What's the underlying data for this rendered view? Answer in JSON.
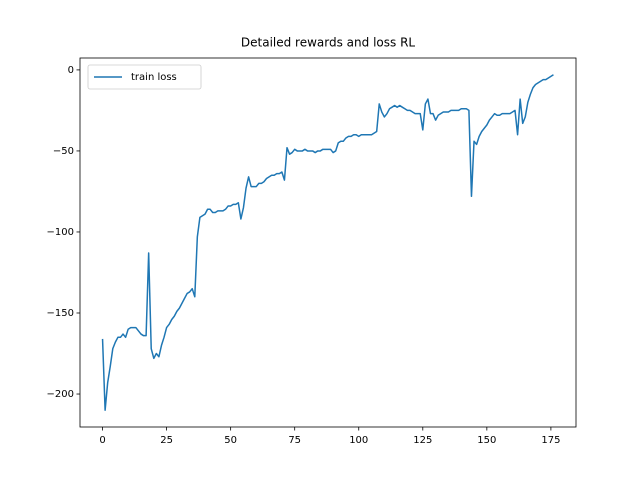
{
  "chart_data": {
    "type": "line",
    "title": "Detailed rewards and loss RL",
    "x": [
      0,
      1,
      2,
      3,
      4,
      5,
      6,
      7,
      8,
      9,
      10,
      11,
      12,
      13,
      14,
      15,
      16,
      17,
      18,
      19,
      20,
      21,
      22,
      23,
      24,
      25,
      26,
      27,
      28,
      29,
      30,
      31,
      32,
      33,
      34,
      35,
      36,
      37,
      38,
      39,
      40,
      41,
      42,
      43,
      44,
      45,
      46,
      47,
      48,
      49,
      50,
      51,
      52,
      53,
      54,
      55,
      56,
      57,
      58,
      59,
      60,
      61,
      62,
      63,
      64,
      65,
      66,
      67,
      68,
      69,
      70,
      71,
      72,
      73,
      74,
      75,
      76,
      77,
      78,
      79,
      80,
      81,
      82,
      83,
      84,
      85,
      86,
      87,
      88,
      89,
      90,
      91,
      92,
      93,
      94,
      95,
      96,
      97,
      98,
      99,
      100,
      101,
      102,
      103,
      104,
      105,
      106,
      107,
      108,
      109,
      110,
      111,
      112,
      113,
      114,
      115,
      116,
      117,
      118,
      119,
      120,
      121,
      122,
      123,
      124,
      125,
      126,
      127,
      128,
      129,
      130,
      131,
      132,
      133,
      134,
      135,
      136,
      137,
      138,
      139,
      140,
      141,
      142,
      143,
      144,
      145,
      146,
      147,
      148,
      149,
      150,
      151,
      152,
      153,
      154,
      155,
      156,
      157,
      158,
      159,
      160,
      161,
      162,
      163,
      164,
      165,
      166,
      167,
      168,
      169,
      170,
      171,
      172,
      173,
      174,
      175,
      176
    ],
    "series": [
      {
        "name": "train loss",
        "color": "#1f77b4",
        "values": [
          -166,
          -210,
          -193,
          -183,
          -172,
          -168,
          -165,
          -165,
          -163,
          -165,
          -160,
          -159,
          -159,
          -159,
          -161,
          -163,
          -164,
          -164,
          -113,
          -172,
          -178,
          -175,
          -177,
          -170,
          -165,
          -159,
          -157,
          -154,
          -152,
          -149,
          -147,
          -144,
          -141,
          -138,
          -137,
          -135,
          -140,
          -103,
          -91,
          -90,
          -89,
          -86,
          -86,
          -88,
          -88,
          -87,
          -87,
          -87,
          -86,
          -84,
          -84,
          -83,
          -83,
          -82,
          -92,
          -85,
          -73,
          -66,
          -72,
          -72,
          -72,
          -70,
          -70,
          -69,
          -67,
          -66,
          -65,
          -65,
          -64,
          -64,
          -63,
          -68,
          -48,
          -52,
          -51,
          -49,
          -50,
          -50,
          -50,
          -49,
          -50,
          -50,
          -50,
          -51,
          -50,
          -50,
          -49,
          -49,
          -49,
          -49,
          -51,
          -50,
          -45,
          -44,
          -44,
          -42,
          -41,
          -41,
          -40,
          -40,
          -41,
          -40,
          -40,
          -40,
          -40,
          -40,
          -39,
          -38,
          -21,
          -26,
          -29,
          -27,
          -24,
          -23,
          -22,
          -23,
          -22,
          -23,
          -24,
          -25,
          -25,
          -26,
          -27,
          -27,
          -27,
          -37,
          -21,
          -18,
          -27,
          -27,
          -31,
          -28,
          -27,
          -26,
          -26,
          -26,
          -25,
          -25,
          -25,
          -25,
          -24,
          -24,
          -24,
          -25,
          -78,
          -44,
          -46,
          -41,
          -38,
          -36,
          -34,
          -31,
          -29,
          -27,
          -28,
          -28,
          -27,
          -27,
          -27,
          -27,
          -26,
          -25,
          -40,
          -18,
          -33,
          -29,
          -20,
          -15,
          -11,
          -9,
          -8,
          -7,
          -6,
          -6,
          -5,
          -4,
          -3
        ]
      }
    ],
    "xlim": [
      -8.8,
      184.8
    ],
    "ylim": [
      -220.35,
      7.35
    ],
    "xticks": [
      0,
      25,
      50,
      75,
      100,
      125,
      150,
      175
    ],
    "yticks": [
      {
        "value": -200,
        "label": "−200"
      },
      {
        "value": -150,
        "label": "−150"
      },
      {
        "value": -100,
        "label": "−100"
      },
      {
        "value": -50,
        "label": "−50"
      },
      0
    ],
    "legend": "upper left"
  }
}
